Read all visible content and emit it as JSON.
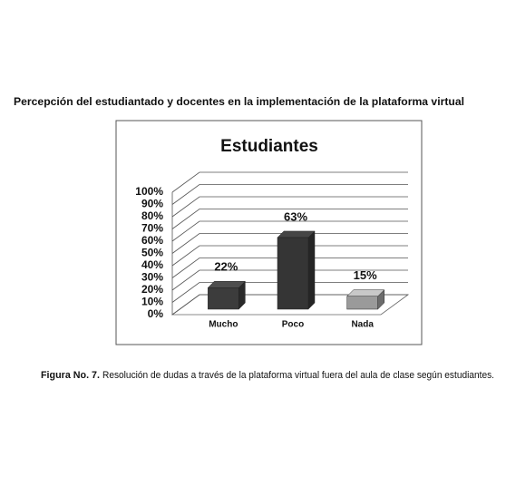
{
  "heading": "Percepción del estudiantado y docentes en la implementación de la plataforma virtual",
  "caption": {
    "label": "Figura No. 7.",
    "text": "Resolución de dudas a través de la plataforma virtual fuera del aula de clase según estudiantes."
  },
  "chart_data": {
    "type": "bar",
    "title": "Estudiantes",
    "categories": [
      "Mucho",
      "Poco",
      "Nada"
    ],
    "values": [
      22,
      63,
      15
    ],
    "value_labels": [
      "22%",
      "63%",
      "15%"
    ],
    "colors": [
      "#3c3c3c",
      "#353535",
      "#9a9a9a"
    ],
    "ylim": [
      0,
      100
    ],
    "yticks": [
      {
        "value": 0,
        "label": "0%"
      },
      {
        "value": 10,
        "label": "10%"
      },
      {
        "value": 20,
        "label": "20%"
      },
      {
        "value": 30,
        "label": "30%"
      },
      {
        "value": 40,
        "label": "40%"
      },
      {
        "value": 50,
        "label": "50%"
      },
      {
        "value": 60,
        "label": "60%"
      },
      {
        "value": 70,
        "label": "70%"
      },
      {
        "value": 80,
        "label": "80%"
      },
      {
        "value": 90,
        "label": "90%"
      },
      {
        "value": 100,
        "label": "100%"
      }
    ],
    "grid": true
  }
}
